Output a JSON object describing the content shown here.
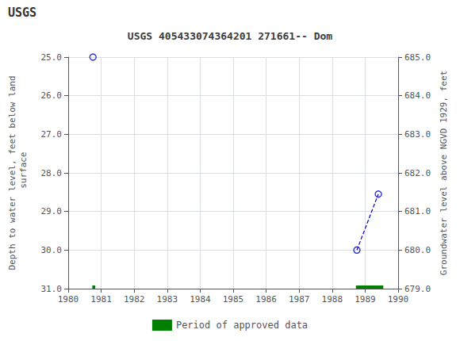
{
  "chart_data": {
    "type": "scatter",
    "title": "USGS 405433074364201 271661-- Dom",
    "annotations": [
      {
        "text": "USGS"
      }
    ],
    "ylabel": "Depth to water level, feet below land\n surface",
    "y2label": "Groundwater level above NGVD 1929, feet",
    "xlim": [
      1980,
      1990
    ],
    "xticks": [
      1980,
      1981,
      1982,
      1983,
      1984,
      1985,
      1986,
      1987,
      1988,
      1989,
      1990
    ],
    "ylim": [
      31.0,
      25.0
    ],
    "yticks": [
      {
        "value": 25,
        "label": "25.0"
      },
      {
        "value": 26,
        "label": "26.0"
      },
      {
        "value": 27,
        "label": "27.0"
      },
      {
        "value": 28,
        "label": "28.0"
      },
      {
        "value": 29,
        "label": "29.0"
      },
      {
        "value": 30,
        "label": "30.0"
      },
      {
        "value": 31,
        "label": "31.0"
      }
    ],
    "y2lim": [
      679.0,
      685.0
    ],
    "y2ticks": [
      {
        "value": 679,
        "label": "679.0"
      },
      {
        "value": 680,
        "label": "680.0"
      },
      {
        "value": 681,
        "label": "681.0"
      },
      {
        "value": 682,
        "label": "682.0"
      },
      {
        "value": 683,
        "label": "683.0"
      },
      {
        "value": 684,
        "label": "684.0"
      },
      {
        "value": 685,
        "label": "685.0"
      }
    ],
    "grid": true,
    "legend": "bottom",
    "series": [
      {
        "type": "line",
        "line_style": "dashed",
        "color": "#0000cc",
        "x": [
          1988.75,
          1989.4
        ],
        "values": [
          30.0,
          28.55
        ]
      },
      {
        "type": "scatter",
        "marker": "open_circle",
        "color": "#0000cc",
        "x": [
          1980.75,
          1988.75,
          1989.4
        ],
        "values": [
          25.0,
          30.0,
          28.55
        ]
      },
      {
        "type": "bar",
        "orientation": "horizontal",
        "name": "Period of approved data",
        "color": "#008000",
        "x_start": [
          1980.73,
          1988.72
        ],
        "x_end": [
          1980.82,
          1989.55
        ],
        "values": [
          31.0,
          31.0
        ]
      }
    ]
  }
}
